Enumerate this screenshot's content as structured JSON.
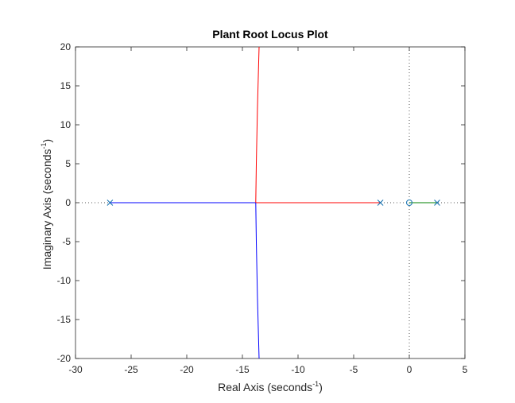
{
  "chart_data": {
    "type": "line",
    "title": "Plant Root Locus Plot",
    "xlabel": {
      "text": "Real Axis (seconds",
      "sup": "-1",
      "tail": ")"
    },
    "ylabel": {
      "text": "Imaginary Axis (seconds",
      "sup": "-1",
      "tail": ")"
    },
    "xlim": [
      -30,
      5
    ],
    "ylim": [
      -20,
      20
    ],
    "xticks": [
      -30,
      -25,
      -20,
      -15,
      -10,
      -5,
      0,
      5
    ],
    "yticks": [
      -20,
      -15,
      -10,
      -5,
      0,
      5,
      10,
      15,
      20
    ],
    "xtick_labels": [
      "-30",
      "-25",
      "-20",
      "-15",
      "-10",
      "-5",
      "0",
      "5"
    ],
    "ytick_labels": [
      "-20",
      "-15",
      "-10",
      "-5",
      "0",
      "5",
      "10",
      "15",
      "20"
    ],
    "grid": false,
    "colors": {
      "pole": "#1f77b4",
      "zero": "#1f77b4",
      "axis_ref": "#555555"
    },
    "series": [
      {
        "color": "#0000ff",
        "x": [
          -26.9,
          -20,
          -14.5,
          -13.8
        ],
        "y": [
          0,
          0,
          0,
          0
        ]
      },
      {
        "color": "#ff0000",
        "x": [
          -2.6,
          -6,
          -10,
          -13.8
        ],
        "y": [
          0,
          0,
          0,
          0
        ]
      },
      {
        "color": "#ff0000",
        "x": [
          -13.8,
          -13.75,
          -13.65,
          -13.5
        ],
        "y": [
          0,
          5,
          12,
          20
        ]
      },
      {
        "color": "#0000ff",
        "x": [
          -13.8,
          -13.75,
          -13.65,
          -13.5
        ],
        "y": [
          0,
          -5,
          -12,
          -20
        ]
      },
      {
        "color": "#008000",
        "x": [
          0,
          2.5
        ],
        "y": [
          0,
          0
        ]
      }
    ],
    "poles": [
      {
        "x": -26.9,
        "y": 0
      },
      {
        "x": -2.6,
        "y": 0
      },
      {
        "x": 2.5,
        "y": 0
      }
    ],
    "zeros": [
      {
        "x": 0,
        "y": 0
      }
    ]
  }
}
